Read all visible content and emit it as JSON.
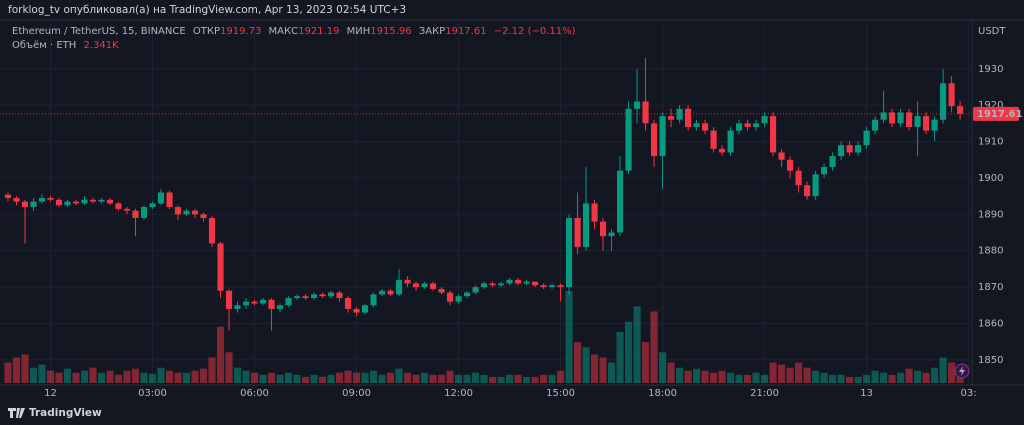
{
  "header": {
    "text": "forklog_tv опубликовал(а) на TradingView.com, Apr 13, 2023 02:54 UTC+3"
  },
  "footer": {
    "text": "TradingView"
  },
  "chart_data": {
    "type": "candlestick",
    "title": "Ethereum / TetherUS, 15, BINANCE",
    "legend_labels": {
      "open": "ОТКР",
      "high": "МАКС",
      "low": "МИН",
      "close": "ЗАКР"
    },
    "change": "−2.12 (−0.11%)",
    "y_label": "USDT",
    "up_color": "#089981",
    "down_color": "#f23645",
    "ylim": [
      1843.1,
      1943.4
    ],
    "yticks": [
      1850,
      1860,
      1870,
      1880,
      1890,
      1900,
      1910,
      1920,
      1930
    ],
    "xlim": [
      -0.94,
      113.4
    ],
    "xticks": [
      {
        "value": 5,
        "label": "12"
      },
      {
        "value": 17,
        "label": "03:00"
      },
      {
        "value": 29,
        "label": "06:00"
      },
      {
        "value": 41,
        "label": "09:00"
      },
      {
        "value": 53,
        "label": "12:00"
      },
      {
        "value": 65,
        "label": "15:00"
      },
      {
        "value": 77,
        "label": "18:00"
      },
      {
        "value": 89,
        "label": "21:00"
      },
      {
        "value": 101,
        "label": "13"
      },
      {
        "value": 113,
        "label": "03:"
      }
    ],
    "grid": true,
    "open": [
      1895.4,
      1894.5,
      1893.5,
      1892,
      1893.5,
      1894.5,
      1894,
      1892.5,
      1893.5,
      1893,
      1894,
      1893.5,
      1894,
      1893,
      1891.5,
      1891,
      1889,
      1892,
      1893,
      1896,
      1892,
      1890,
      1891,
      1890,
      1889,
      1882,
      1869,
      1864,
      1865,
      1866,
      1865.5,
      1866.5,
      1864,
      1865,
      1867,
      1867.5,
      1867,
      1868,
      1867.5,
      1868.5,
      1867,
      1864,
      1863,
      1865,
      1868,
      1869,
      1868,
      1872,
      1871,
      1870,
      1871,
      1869.5,
      1868.5,
      1866,
      1867.5,
      1868.5,
      1870,
      1871,
      1870.5,
      1871,
      1872,
      1871,
      1871.5,
      1870.5,
      1870,
      1870.5,
      1870,
      1889,
      1881,
      1893,
      1888,
      1884,
      1885,
      1902,
      1919,
      1921,
      1915,
      1906,
      1917,
      1916,
      1919,
      1914,
      1915,
      1913,
      1908,
      1907,
      1913,
      1915,
      1914,
      1915,
      1917,
      1907,
      1905,
      1902,
      1898,
      1895,
      1901,
      1903,
      1906,
      1909,
      1907,
      1909,
      1913,
      1916,
      1918,
      1915,
      1918,
      1914,
      1917,
      1913,
      1916,
      1926,
      1919.73
    ],
    "high": [
      1896,
      1895,
      1894,
      1894.5,
      1895.5,
      1895,
      1894.5,
      1894,
      1894,
      1895,
      1894.5,
      1894.5,
      1894.5,
      1893.5,
      1892,
      1891.5,
      1892.5,
      1893.5,
      1897,
      1896.5,
      1892.5,
      1891.5,
      1891.5,
      1890.5,
      1889.5,
      1882.5,
      1869.5,
      1866,
      1867,
      1866.5,
      1867,
      1867,
      1865.5,
      1867.5,
      1868,
      1868,
      1868.5,
      1868.5,
      1869,
      1869,
      1867.5,
      1864.5,
      1865.5,
      1868.5,
      1869.5,
      1869.5,
      1875,
      1873,
      1871.5,
      1871.5,
      1871.5,
      1870,
      1869,
      1868,
      1869,
      1870.5,
      1871.5,
      1871.5,
      1871.5,
      1872.5,
      1872.5,
      1872,
      1871.5,
      1871,
      1871,
      1871,
      1890,
      1896,
      1903,
      1894,
      1889,
      1886,
      1906,
      1921,
      1930,
      1933,
      1916,
      1918,
      1919,
      1920,
      1920,
      1916,
      1916,
      1914,
      1909,
      1914,
      1916,
      1916,
      1916,
      1918,
      1918,
      1908,
      1906,
      1903,
      1899,
      1902,
      1904,
      1907,
      1910,
      1910,
      1910,
      1914,
      1917,
      1924,
      1919,
      1919,
      1919,
      1921,
      1918,
      1917,
      1930,
      1928,
      1921.19
    ],
    "low": [
      1893.5,
      1892.5,
      1882,
      1891,
      1893,
      1893.5,
      1892,
      1892,
      1892.5,
      1892.5,
      1893,
      1893,
      1892.5,
      1891,
      1890,
      1884,
      1888.5,
      1891.5,
      1892.5,
      1891.5,
      1888.5,
      1889.5,
      1889,
      1888,
      1881,
      1867,
      1858,
      1863,
      1864,
      1865,
      1865,
      1858,
      1863,
      1864.5,
      1866.5,
      1866.5,
      1866.5,
      1867,
      1867,
      1866,
      1863,
      1862,
      1862.5,
      1864.5,
      1867.5,
      1867.5,
      1867.5,
      1870,
      1869,
      1869.5,
      1869,
      1868,
      1865,
      1865.5,
      1867,
      1868,
      1869.5,
      1870,
      1870,
      1870.5,
      1870.5,
      1870.5,
      1870,
      1869.5,
      1869.5,
      1866,
      1868,
      1879,
      1880,
      1886,
      1880,
      1880,
      1884,
      1901,
      1915,
      1913,
      1903,
      1897,
      1914,
      1915,
      1913,
      1913,
      1912,
      1907,
      1906,
      1906,
      1912,
      1913,
      1913,
      1914,
      1906,
      1903,
      1900,
      1896,
      1894,
      1894,
      1900,
      1902,
      1905,
      1906,
      1906,
      1908,
      1912,
      1915,
      1914,
      1914,
      1913,
      1906,
      1912,
      1910,
      1915,
      1918,
      1915.96
    ],
    "close": [
      1894.5,
      1893.5,
      1892,
      1893.5,
      1894.5,
      1894,
      1892.5,
      1893.5,
      1893,
      1894,
      1893.5,
      1894,
      1893,
      1891.5,
      1891,
      1889,
      1892,
      1893,
      1896,
      1892,
      1890,
      1891,
      1890,
      1889,
      1882,
      1869,
      1864,
      1865,
      1866,
      1865.5,
      1866.5,
      1864,
      1865,
      1867,
      1867.5,
      1867,
      1868,
      1867.5,
      1868.5,
      1867,
      1864,
      1863,
      1865,
      1868,
      1869,
      1868,
      1872,
      1871,
      1870,
      1871,
      1869.5,
      1868.5,
      1866,
      1867.5,
      1868.5,
      1870,
      1871,
      1870.5,
      1871,
      1872,
      1871,
      1871.5,
      1870.5,
      1870,
      1870.5,
      1870,
      1889,
      1881,
      1893,
      1888,
      1884,
      1885,
      1902,
      1919,
      1921,
      1915,
      1906,
      1917,
      1916,
      1919,
      1914,
      1915,
      1913,
      1908,
      1907,
      1913,
      1915,
      1914,
      1915,
      1917,
      1907,
      1905,
      1902,
      1898,
      1895,
      1901,
      1903,
      1906,
      1909,
      1907,
      1909,
      1913,
      1916,
      1918,
      1915,
      1918,
      1914,
      1917,
      1913,
      1916,
      1926,
      1919.73,
      1917.61
    ],
    "volume": {
      "name": "Объём · ETH",
      "value_label": "2.341K",
      "values": [
        5800,
        7250,
        8120,
        4350,
        5220,
        3480,
        2900,
        4060,
        2900,
        3480,
        4350,
        2900,
        3480,
        2320,
        3480,
        4060,
        2900,
        2610,
        4350,
        3480,
        2900,
        2900,
        3480,
        4060,
        7250,
        15950,
        8700,
        4350,
        3480,
        2900,
        2320,
        2900,
        2320,
        2900,
        2320,
        1740,
        2320,
        1740,
        2320,
        2900,
        3480,
        2900,
        2900,
        3480,
        2320,
        2900,
        4060,
        2900,
        2320,
        2900,
        2320,
        2320,
        3480,
        2320,
        2320,
        2900,
        2320,
        1740,
        1740,
        2320,
        2320,
        1740,
        1740,
        2320,
        2320,
        3480,
        26100,
        11600,
        10150,
        8120,
        7250,
        5800,
        14500,
        17400,
        21750,
        11600,
        20300,
        8700,
        5800,
        4350,
        3480,
        4060,
        3480,
        2900,
        3480,
        2900,
        2320,
        2320,
        2900,
        2320,
        5800,
        5220,
        4350,
        5800,
        4350,
        3480,
        2900,
        2320,
        2320,
        1740,
        1740,
        2320,
        3480,
        2900,
        2320,
        2900,
        4060,
        3480,
        2900,
        4350,
        7250,
        5800,
        2341
      ]
    }
  }
}
